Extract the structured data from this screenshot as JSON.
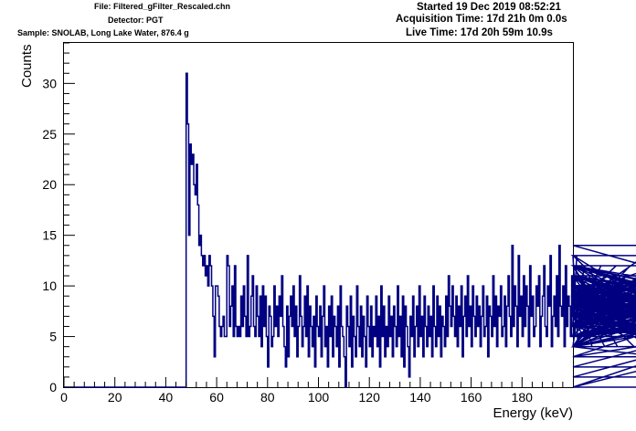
{
  "header": {
    "file": "File: Filtered_gFilter_Rescaled.chn",
    "detector": "Detector: PGT",
    "sample": "Sample: SNOLAB, Long Lake Water, 876.4 g",
    "started": "Started 19 Dec 2019 08:52:21",
    "acquisition": "Acquisition Time: 17d 21h 0m 0.0s",
    "live": "Live Time: 17d 20h 59m 10.9s"
  },
  "colors": {
    "histogram": "#000080",
    "axes": "#000000",
    "background": "#ffffff"
  },
  "chart_data": {
    "type": "histogram",
    "xlabel": "Energy (keV)",
    "ylabel": "Counts",
    "xlim": [
      0,
      200
    ],
    "ylim": [
      0,
      34
    ],
    "grid": false,
    "legend": "none",
    "bin_width_keV": 0.5,
    "x_ticks": [
      "0",
      "20",
      "40",
      "60",
      "80",
      "100",
      "120",
      "140",
      "160",
      "180"
    ],
    "y_ticks": [
      "0",
      "5",
      "10",
      "15",
      "20",
      "25",
      "30"
    ],
    "first_bin_keV": 0,
    "counts": [
      0,
      0,
      0,
      0,
      0,
      0,
      0,
      0,
      0,
      0,
      0,
      0,
      0,
      0,
      0,
      0,
      0,
      0,
      0,
      0,
      0,
      0,
      0,
      0,
      0,
      0,
      0,
      0,
      0,
      0,
      0,
      0,
      0,
      0,
      0,
      0,
      0,
      0,
      0,
      0,
      0,
      0,
      0,
      0,
      0,
      0,
      0,
      0,
      0,
      0,
      0,
      0,
      0,
      0,
      0,
      0,
      0,
      0,
      0,
      0,
      0,
      0,
      0,
      0,
      0,
      0,
      0,
      0,
      0,
      0,
      0,
      0,
      0,
      0,
      0,
      0,
      0,
      0,
      0,
      0,
      0,
      0,
      0,
      0,
      0,
      0,
      0,
      0,
      0,
      0,
      0,
      0,
      0,
      0,
      0,
      0,
      31,
      26,
      15,
      24,
      22,
      23,
      20,
      19,
      22,
      18,
      14,
      15,
      13,
      12,
      13,
      11,
      12,
      10,
      13,
      12,
      10,
      7,
      3,
      10,
      10,
      9,
      6,
      5,
      6,
      7,
      5,
      5,
      13,
      12,
      6,
      8,
      10,
      5,
      12,
      6,
      5,
      6,
      5,
      9,
      6,
      10,
      7,
      5,
      13,
      5,
      6,
      9,
      11,
      6,
      5,
      10,
      7,
      5,
      9,
      4,
      10,
      6,
      9,
      5,
      2,
      8,
      7,
      4,
      5,
      10,
      6,
      8,
      5,
      9,
      7,
      11,
      6,
      4,
      2,
      8,
      3,
      7,
      9,
      6,
      10,
      5,
      8,
      3,
      6,
      11,
      7,
      4,
      6,
      9,
      5,
      10,
      3,
      8,
      6,
      4,
      7,
      2,
      9,
      6,
      5,
      8,
      3,
      7,
      10,
      4,
      6,
      2,
      8,
      5,
      9,
      3,
      7,
      6,
      4,
      8,
      2,
      10,
      6,
      5,
      3,
      0,
      8,
      6,
      4,
      9,
      2,
      7,
      5,
      3,
      10,
      6,
      4,
      8,
      3,
      7,
      5,
      2,
      9,
      6,
      4,
      8,
      3,
      6,
      5,
      9,
      4,
      7,
      2,
      10,
      5,
      8,
      3,
      6,
      4,
      9,
      5,
      7,
      3,
      8,
      6,
      4,
      10,
      5,
      7,
      3,
      9,
      2,
      8,
      6,
      4,
      1,
      7,
      5,
      9,
      3,
      6,
      8,
      4,
      10,
      5,
      7,
      3,
      9,
      6,
      4,
      8,
      5,
      7,
      3,
      10,
      6,
      4,
      9,
      5,
      8,
      3,
      7,
      6,
      4,
      9,
      5,
      11,
      8,
      6,
      10,
      7,
      5,
      9,
      4,
      8,
      6,
      10,
      3,
      7,
      9,
      5,
      11,
      6,
      8,
      4,
      10,
      7,
      5,
      9,
      6,
      8,
      4,
      7,
      10,
      5,
      6,
      9,
      3,
      8,
      7,
      5,
      11,
      6,
      9,
      4,
      8,
      7,
      10,
      5,
      6,
      9,
      4,
      8,
      11,
      7,
      5,
      14,
      6,
      10,
      8,
      4,
      13,
      7,
      9,
      5,
      11,
      6,
      10,
      8,
      4,
      12,
      7,
      9,
      5,
      6,
      10,
      8,
      11,
      4,
      7,
      9,
      12,
      6,
      5,
      10,
      8,
      13,
      4,
      7,
      9,
      6,
      11,
      5,
      14,
      8,
      7,
      10,
      4,
      12,
      6,
      9,
      8,
      5,
      11,
      7,
      10,
      6,
      13,
      4,
      9,
      8,
      7,
      5,
      12,
      10,
      6,
      8,
      9,
      11,
      4,
      7,
      10,
      5,
      8,
      9,
      6,
      12,
      7,
      10,
      4,
      8,
      9,
      11,
      6,
      5,
      10,
      7,
      8,
      12,
      4,
      9,
      6,
      10,
      7,
      8,
      5,
      11,
      9,
      6,
      12,
      7,
      10,
      4,
      8,
      9,
      6,
      11,
      5,
      7,
      10,
      8,
      13,
      6,
      9,
      4,
      10,
      7,
      8,
      11,
      5,
      9,
      6,
      12,
      7,
      10,
      8,
      4,
      9,
      11,
      6,
      7,
      10,
      5,
      8,
      12,
      9,
      6,
      10,
      7,
      4,
      11,
      8,
      9,
      13,
      6,
      10,
      7,
      5,
      9,
      12,
      8,
      6,
      11,
      7,
      10,
      4,
      9,
      8,
      12,
      6,
      10,
      5,
      7,
      11,
      9,
      8,
      6,
      14,
      10,
      7,
      5,
      9,
      12,
      8,
      6,
      10,
      11,
      7,
      4,
      9,
      8,
      10,
      6,
      12,
      7,
      5,
      9,
      11,
      8,
      6,
      10,
      7,
      4,
      8,
      12,
      9,
      6,
      10,
      7,
      3,
      9,
      8,
      11,
      6,
      10,
      5,
      7,
      9,
      12,
      8,
      6,
      10,
      7,
      4,
      8,
      9,
      11,
      6,
      10,
      0,
      7,
      8,
      5,
      9,
      6,
      10,
      8,
      4,
      11,
      7,
      9,
      5,
      8,
      10,
      6,
      12,
      7,
      9,
      2,
      8,
      10,
      5,
      9,
      7,
      0,
      6,
      10,
      8,
      5,
      7,
      9,
      4,
      8,
      6,
      3,
      7,
      5,
      8,
      6,
      4,
      1,
      8,
      7,
      5
    ]
  }
}
